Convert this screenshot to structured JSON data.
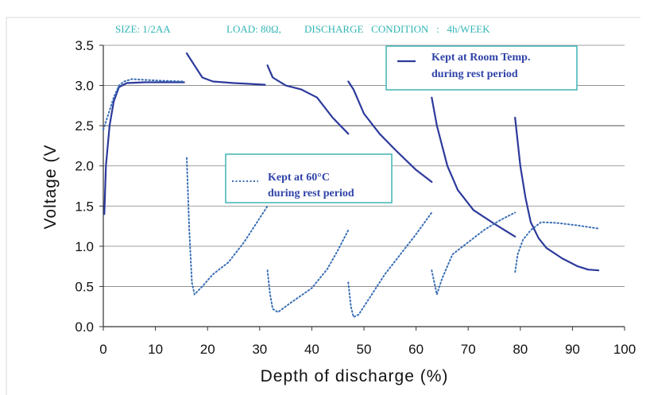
{
  "header": {
    "size_label": "SIZE: 1/2AA",
    "load_label": "LOAD: 80Ω,",
    "condition_label": "DISCHARGE   CONDITION   :   4h/WEEK"
  },
  "legend": {
    "room_temp": {
      "line1": "Kept at Room Temp.",
      "line2": "during rest period"
    },
    "sixty_c": {
      "line1": "Kept at 60°C",
      "line2": "during rest period"
    }
  },
  "colors": {
    "room_temp_series": "#2c3a9c",
    "sixty_c_series": "#3a6fb5",
    "legend_border": "#3fb4b4",
    "header_text": "#33b5b5",
    "grid": "#808080"
  },
  "chart_data": {
    "type": "line",
    "title": "",
    "xlabel": "Depth of discharge (%)",
    "ylabel": "Voltage (V",
    "xlim": [
      0,
      100
    ],
    "ylim": [
      0,
      3.5
    ],
    "x_ticks": [
      "0",
      "10",
      "20",
      "30",
      "40",
      "50",
      "60",
      "70",
      "80",
      "90",
      "100"
    ],
    "y_ticks": [
      "0.0",
      "0.5",
      "1.0",
      "1.5",
      "2.0",
      "2.5",
      "3.0",
      "3.5"
    ],
    "grid": "horizontal",
    "series": [
      {
        "name": "Kept at Room Temp. during rest period",
        "style": "solid",
        "segments": [
          [
            [
              0.2,
              1.4
            ],
            [
              0.5,
              2.0
            ],
            [
              1.2,
              2.5
            ],
            [
              2,
              2.8
            ],
            [
              3,
              2.98
            ],
            [
              4.5,
              3.03
            ],
            [
              8,
              3.04
            ],
            [
              12,
              3.04
            ],
            [
              15.5,
              3.04
            ]
          ],
          [
            [
              16,
              3.4
            ],
            [
              17.5,
              3.25
            ],
            [
              19,
              3.1
            ],
            [
              21,
              3.05
            ],
            [
              25,
              3.03
            ],
            [
              28,
              3.02
            ],
            [
              31,
              3.01
            ]
          ],
          [
            [
              31.5,
              3.25
            ],
            [
              32.5,
              3.1
            ],
            [
              35,
              3.0
            ],
            [
              38,
              2.95
            ],
            [
              41,
              2.85
            ],
            [
              44,
              2.6
            ],
            [
              47,
              2.4
            ]
          ],
          [
            [
              47,
              3.05
            ],
            [
              48,
              2.95
            ],
            [
              50,
              2.65
            ],
            [
              53,
              2.4
            ],
            [
              56,
              2.2
            ],
            [
              60,
              1.95
            ],
            [
              63,
              1.8
            ]
          ],
          [
            [
              63,
              2.85
            ],
            [
              64,
              2.5
            ],
            [
              66,
              2.0
            ],
            [
              68,
              1.7
            ],
            [
              71,
              1.45
            ],
            [
              75,
              1.28
            ],
            [
              79,
              1.12
            ]
          ],
          [
            [
              79,
              2.6
            ],
            [
              80,
              2.0
            ],
            [
              81,
              1.6
            ],
            [
              82,
              1.3
            ],
            [
              83.5,
              1.1
            ],
            [
              85,
              0.98
            ],
            [
              88,
              0.85
            ],
            [
              91,
              0.75
            ],
            [
              93,
              0.71
            ],
            [
              95,
              0.7
            ]
          ]
        ]
      },
      {
        "name": "Kept at 60°C during rest period",
        "style": "dotted",
        "segments": [
          [
            [
              0,
              2.45
            ],
            [
              1,
              2.65
            ],
            [
              2,
              2.85
            ],
            [
              3,
              3.0
            ],
            [
              4,
              3.05
            ],
            [
              5.5,
              3.08
            ],
            [
              8,
              3.07
            ],
            [
              11,
              3.06
            ],
            [
              15.5,
              3.05
            ]
          ],
          [
            [
              16,
              2.1
            ],
            [
              16.5,
              1.2
            ],
            [
              17,
              0.55
            ],
            [
              17.5,
              0.4
            ],
            [
              19,
              0.5
            ],
            [
              21,
              0.65
            ],
            [
              24,
              0.8
            ],
            [
              27,
              1.05
            ],
            [
              30,
              1.35
            ],
            [
              31.5,
              1.5
            ]
          ],
          [
            [
              31.5,
              0.7
            ],
            [
              32,
              0.4
            ],
            [
              32.5,
              0.22
            ],
            [
              33.5,
              0.18
            ],
            [
              36,
              0.3
            ],
            [
              40,
              0.48
            ],
            [
              43,
              0.72
            ],
            [
              45,
              0.95
            ],
            [
              47,
              1.2
            ]
          ],
          [
            [
              47,
              0.55
            ],
            [
              47.5,
              0.25
            ],
            [
              48,
              0.12
            ],
            [
              49,
              0.15
            ],
            [
              51,
              0.35
            ],
            [
              54,
              0.65
            ],
            [
              57,
              0.9
            ],
            [
              60,
              1.15
            ],
            [
              63,
              1.42
            ]
          ],
          [
            [
              63,
              0.7
            ],
            [
              63.5,
              0.55
            ],
            [
              64,
              0.4
            ],
            [
              65,
              0.6
            ],
            [
              67,
              0.9
            ],
            [
              70,
              1.05
            ],
            [
              73,
              1.2
            ],
            [
              76,
              1.32
            ],
            [
              79,
              1.42
            ]
          ],
          [
            [
              79,
              0.68
            ],
            [
              79.5,
              0.9
            ],
            [
              80.5,
              1.08
            ],
            [
              82,
              1.2
            ],
            [
              84,
              1.3
            ],
            [
              87,
              1.29
            ],
            [
              91,
              1.26
            ],
            [
              95,
              1.22
            ]
          ]
        ]
      }
    ]
  }
}
